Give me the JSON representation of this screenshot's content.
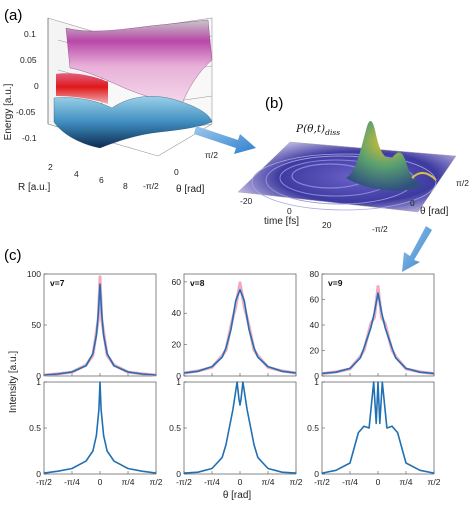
{
  "panels": {
    "a": {
      "label": "(a)",
      "ylabel": "Energy [a.u.]",
      "xlabel": "R [a.u.]",
      "zlabel": "θ [rad]",
      "yticks": [
        "0.1",
        "0.05",
        "0",
        "-0.05",
        "-0.1"
      ],
      "rticks": [
        "2",
        "4",
        "6",
        "8"
      ],
      "thticks": [
        "-π/2",
        "0",
        "π/2"
      ]
    },
    "b": {
      "label": "(b)",
      "title": "P(θ,t)diss",
      "title_main": "P(θ,t)",
      "title_sub": "diss",
      "xlabel": "time [fs]",
      "zlabel": "θ [rad]",
      "tticks": [
        "-20",
        "0",
        "20"
      ],
      "thticks": [
        "π/2",
        "0",
        "-π/2"
      ]
    },
    "c": {
      "label": "(c)",
      "ylabel": "Intensity [a.u.]",
      "xlabel": "θ [rad]",
      "xticks": [
        "-π/2",
        "-π/4",
        "0",
        "π/4",
        "π/2"
      ]
    }
  },
  "chart_data": [
    {
      "type": "line",
      "subplot": "c-top-1",
      "label": "v=7",
      "ylim": [
        0,
        100
      ],
      "yticks": [
        "0",
        "50",
        "100"
      ],
      "x": [
        -1.5708,
        -1.1781,
        -0.7854,
        -0.3927,
        -0.2,
        -0.1,
        -0.05,
        0,
        0.05,
        0.1,
        0.2,
        0.3927,
        0.7854,
        1.1781,
        1.5708
      ],
      "series": [
        {
          "values": [
            1,
            2,
            4,
            10,
            22,
            40,
            60,
            90,
            60,
            40,
            22,
            10,
            4,
            2,
            1
          ]
        }
      ]
    },
    {
      "type": "line",
      "subplot": "c-top-2",
      "label": "v=8",
      "ylim": [
        0,
        65
      ],
      "yticks": [
        "0",
        "20",
        "40",
        "60"
      ],
      "x": [
        -1.5708,
        -1.1781,
        -0.7854,
        -0.5,
        -0.3927,
        -0.25,
        -0.12,
        0,
        0.12,
        0.25,
        0.3927,
        0.5,
        0.7854,
        1.1781,
        1.5708
      ],
      "series": [
        {
          "values": [
            2,
            3,
            6,
            12,
            18,
            30,
            48,
            55,
            48,
            30,
            18,
            12,
            6,
            3,
            2
          ]
        }
      ]
    },
    {
      "type": "line",
      "subplot": "c-top-3",
      "label": "v=9",
      "ylim": [
        0,
        80
      ],
      "yticks": [
        "0",
        "20",
        "40",
        "60",
        "80"
      ],
      "x": [
        -1.5708,
        -1.1781,
        -0.7854,
        -0.5,
        -0.3927,
        -0.2,
        -0.1,
        0,
        0.1,
        0.2,
        0.3927,
        0.5,
        0.7854,
        1.1781,
        1.5708
      ],
      "series": [
        {
          "values": [
            2,
            3,
            6,
            14,
            22,
            38,
            50,
            65,
            50,
            38,
            22,
            14,
            6,
            3,
            2
          ]
        }
      ]
    },
    {
      "type": "line",
      "subplot": "c-bottom-1",
      "ylim": [
        0,
        1
      ],
      "yticks": [
        "0",
        "0.5",
        "1"
      ],
      "x": [
        -1.5708,
        -1.1781,
        -0.7854,
        -0.3927,
        -0.2,
        -0.1,
        -0.03,
        0,
        0.03,
        0.1,
        0.2,
        0.3927,
        0.7854,
        1.1781,
        1.5708
      ],
      "series": [
        {
          "values": [
            0.01,
            0.03,
            0.06,
            0.14,
            0.25,
            0.42,
            0.7,
            1,
            0.7,
            0.42,
            0.25,
            0.14,
            0.06,
            0.03,
            0.01
          ]
        }
      ]
    },
    {
      "type": "line",
      "subplot": "c-bottom-2",
      "ylim": [
        0,
        1
      ],
      "yticks": [
        "0",
        "0.5",
        "1"
      ],
      "x": [
        -1.5708,
        -1.1781,
        -0.7854,
        -0.5,
        -0.3927,
        -0.2,
        -0.08,
        -0.03,
        0,
        0.03,
        0.08,
        0.2,
        0.3927,
        0.5,
        0.7854,
        1.1781,
        1.5708
      ],
      "series": [
        {
          "values": [
            0.01,
            0.02,
            0.06,
            0.18,
            0.32,
            0.7,
            1,
            0.82,
            0.75,
            0.82,
            1,
            0.7,
            0.32,
            0.18,
            0.06,
            0.02,
            0.01
          ]
        }
      ]
    },
    {
      "type": "line",
      "subplot": "c-bottom-3",
      "ylim": [
        0,
        1
      ],
      "yticks": [
        "0",
        "0.5",
        "1"
      ],
      "x": [
        -1.5708,
        -1.1781,
        -0.7854,
        -0.55,
        -0.3927,
        -0.25,
        -0.12,
        -0.05,
        0,
        0.05,
        0.12,
        0.25,
        0.3927,
        0.55,
        0.7854,
        1.1781,
        1.5708
      ],
      "series": [
        {
          "values": [
            0.01,
            0.04,
            0.12,
            0.45,
            0.52,
            0.5,
            1,
            0.55,
            1,
            0.55,
            1,
            0.5,
            0.52,
            0.45,
            0.12,
            0.04,
            0.01
          ]
        }
      ]
    }
  ]
}
